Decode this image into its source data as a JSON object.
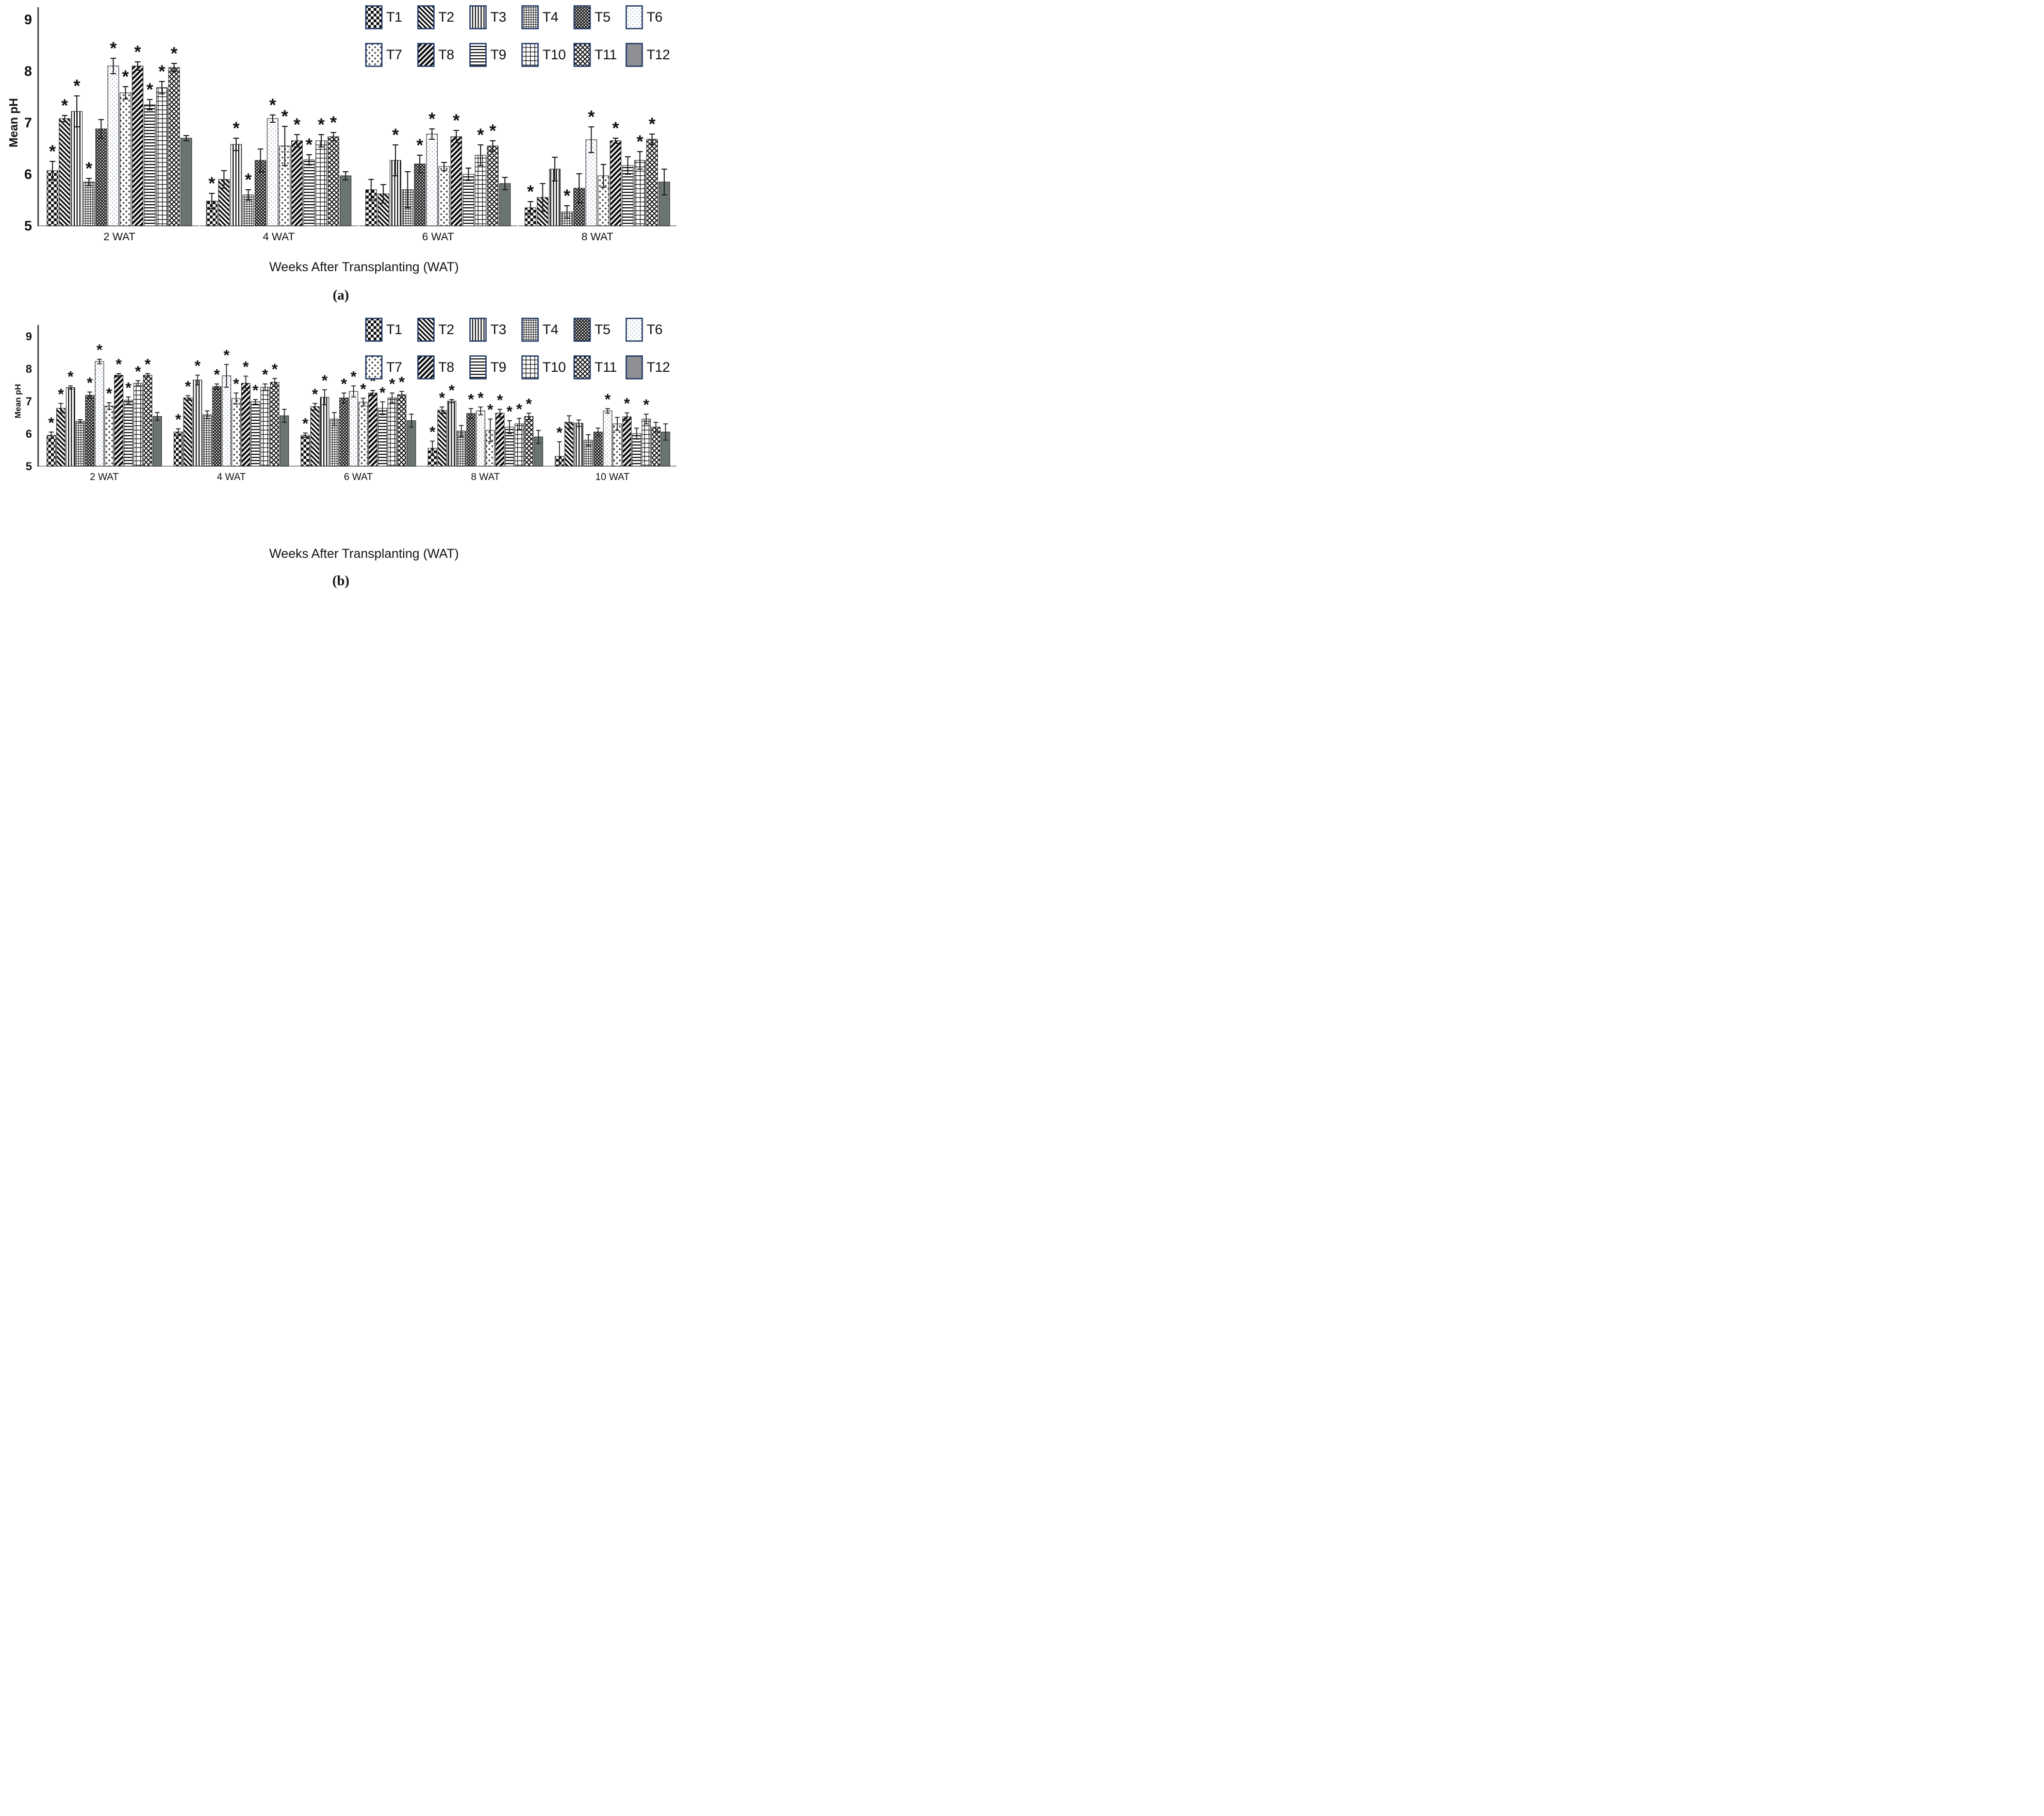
{
  "figure": {
    "panels": [
      {
        "id": "a",
        "panel_label": "(a)"
      },
      {
        "id": "b",
        "panel_label": "(b)"
      }
    ],
    "legend": {
      "items": [
        {
          "label": "T1",
          "pattern": "checker"
        },
        {
          "label": "T2",
          "pattern": "diag-down"
        },
        {
          "label": "T3",
          "pattern": "vlines"
        },
        {
          "label": "T4",
          "pattern": "grid-fine"
        },
        {
          "label": "T5",
          "pattern": "diamond-fine"
        },
        {
          "label": "T6",
          "pattern": "dots"
        },
        {
          "label": "T7",
          "pattern": "plus"
        },
        {
          "label": "T8",
          "pattern": "diag-up"
        },
        {
          "label": "T9",
          "pattern": "hlines"
        },
        {
          "label": "T10",
          "pattern": "grid"
        },
        {
          "label": "T11",
          "pattern": "diamond"
        },
        {
          "label": "T12",
          "pattern": "solid"
        }
      ]
    },
    "colors": {
      "bar_outline": "#2b2b2b",
      "axis": "#4a4a4a",
      "baseline": "#9a9a9a",
      "text": "#111111",
      "t12_bar": "#6b756f",
      "t12_legend": "#8e9094",
      "t6_dot": "#8fa2c2",
      "legend_border": "#1f3864"
    },
    "significance_marker": "*"
  },
  "chart_data": [
    {
      "type": "bar",
      "title": "(a)",
      "xlabel": "Weeks After Transplanting (WAT)",
      "ylabel": "Mean pH",
      "ylim": [
        5,
        9
      ],
      "y_ticks": [
        5,
        6,
        7,
        8,
        9
      ],
      "grid": false,
      "legend_position": "top-right",
      "categories": [
        "2 WAT",
        "4 WAT",
        "6 WAT",
        "8 WAT"
      ],
      "series": [
        {
          "name": "T1",
          "pattern": "checker",
          "values": [
            6.07,
            5.48,
            5.7,
            5.35
          ],
          "errors": [
            0.18,
            0.15,
            0.2,
            0.12
          ],
          "significant": [
            true,
            true,
            false,
            true
          ]
        },
        {
          "name": "T2",
          "pattern": "diag-down",
          "values": [
            7.08,
            5.9,
            5.62,
            5.55
          ],
          "errors": [
            0.06,
            0.17,
            0.18,
            0.27
          ],
          "significant": [
            true,
            false,
            false,
            false
          ]
        },
        {
          "name": "T3",
          "pattern": "vlines",
          "values": [
            7.22,
            6.58,
            6.27,
            6.1
          ],
          "errors": [
            0.3,
            0.12,
            0.3,
            0.23
          ],
          "significant": [
            true,
            true,
            true,
            false
          ]
        },
        {
          "name": "T4",
          "pattern": "grid-fine",
          "values": [
            5.85,
            5.6,
            5.7,
            5.27
          ],
          "errors": [
            0.07,
            0.1,
            0.35,
            0.12
          ],
          "significant": [
            true,
            true,
            false,
            true
          ]
        },
        {
          "name": "T5",
          "pattern": "diamond-fine",
          "values": [
            6.88,
            6.27,
            6.2,
            5.73
          ],
          "errors": [
            0.18,
            0.22,
            0.17,
            0.28
          ],
          "significant": [
            false,
            false,
            true,
            false
          ]
        },
        {
          "name": "T6",
          "pattern": "dots",
          "values": [
            8.1,
            7.08,
            6.78,
            6.67
          ],
          "errors": [
            0.15,
            0.07,
            0.1,
            0.25
          ],
          "significant": [
            true,
            true,
            true,
            true
          ]
        },
        {
          "name": "T7",
          "pattern": "plus",
          "values": [
            7.58,
            6.55,
            6.15,
            5.97
          ],
          "errors": [
            0.12,
            0.38,
            0.08,
            0.22
          ],
          "significant": [
            true,
            true,
            false,
            false
          ]
        },
        {
          "name": "T8",
          "pattern": "diag-up",
          "values": [
            8.1,
            6.65,
            6.73,
            6.65
          ],
          "errors": [
            0.08,
            0.12,
            0.12,
            0.05
          ],
          "significant": [
            true,
            true,
            true,
            true
          ]
        },
        {
          "name": "T9",
          "pattern": "hlines",
          "values": [
            7.35,
            6.28,
            6.0,
            6.17
          ],
          "errors": [
            0.1,
            0.1,
            0.12,
            0.17
          ],
          "significant": [
            true,
            true,
            false,
            false
          ]
        },
        {
          "name": "T10",
          "pattern": "grid",
          "values": [
            7.68,
            6.65,
            6.37,
            6.27
          ],
          "errors": [
            0.12,
            0.12,
            0.2,
            0.17
          ],
          "significant": [
            true,
            true,
            true,
            true
          ]
        },
        {
          "name": "T11",
          "pattern": "diamond",
          "values": [
            8.07,
            6.73,
            6.55,
            6.68
          ],
          "errors": [
            0.08,
            0.08,
            0.1,
            0.1
          ],
          "significant": [
            true,
            true,
            true,
            true
          ]
        },
        {
          "name": "T12",
          "pattern": "solid",
          "values": [
            6.7,
            5.97,
            5.82,
            5.85
          ],
          "errors": [
            0.05,
            0.08,
            0.12,
            0.25
          ],
          "significant": [
            false,
            false,
            false,
            false
          ]
        }
      ]
    },
    {
      "type": "bar",
      "title": "(b)",
      "xlabel": "Weeks After Transplanting (WAT)",
      "ylabel": "Mean pH",
      "ylim": [
        5,
        9
      ],
      "y_ticks": [
        5,
        6,
        7,
        8,
        9
      ],
      "grid": false,
      "legend_position": "top-right",
      "categories": [
        "2 WAT",
        "4 WAT",
        "6 WAT",
        "8 WAT",
        "10 WAT"
      ],
      "series": [
        {
          "name": "T1",
          "pattern": "checker",
          "values": [
            5.95,
            6.05,
            5.95,
            5.55,
            5.3
          ],
          "errors": [
            0.1,
            0.1,
            0.07,
            0.22,
            0.45
          ],
          "significant": [
            true,
            true,
            true,
            true,
            true
          ]
        },
        {
          "name": "T2",
          "pattern": "diag-down",
          "values": [
            6.78,
            7.1,
            6.83,
            6.72,
            6.35
          ],
          "errors": [
            0.15,
            0.07,
            0.1,
            0.1,
            0.2
          ],
          "significant": [
            true,
            true,
            true,
            true,
            false
          ]
        },
        {
          "name": "T3",
          "pattern": "vlines",
          "values": [
            7.42,
            7.65,
            7.12,
            7.0,
            6.32
          ],
          "errors": [
            0.05,
            0.15,
            0.23,
            0.05,
            0.1
          ],
          "significant": [
            true,
            true,
            true,
            true,
            false
          ]
        },
        {
          "name": "T4",
          "pattern": "grid-fine",
          "values": [
            6.38,
            6.58,
            6.45,
            6.08,
            5.8
          ],
          "errors": [
            0.05,
            0.12,
            0.2,
            0.17,
            0.17
          ],
          "significant": [
            false,
            false,
            false,
            false,
            false
          ]
        },
        {
          "name": "T5",
          "pattern": "diamond-fine",
          "values": [
            7.18,
            7.45,
            7.1,
            6.62,
            6.05
          ],
          "errors": [
            0.1,
            0.08,
            0.15,
            0.15,
            0.12
          ],
          "significant": [
            true,
            true,
            true,
            true,
            false
          ]
        },
        {
          "name": "T6",
          "pattern": "dots",
          "values": [
            8.22,
            7.78,
            7.3,
            6.7,
            6.7
          ],
          "errors": [
            0.07,
            0.35,
            0.17,
            0.12,
            0.07
          ],
          "significant": [
            true,
            true,
            true,
            true,
            true
          ]
        },
        {
          "name": "T7",
          "pattern": "plus",
          "values": [
            6.85,
            7.08,
            6.97,
            6.1,
            6.3
          ],
          "errors": [
            0.1,
            0.17,
            0.12,
            0.35,
            0.2
          ],
          "significant": [
            true,
            true,
            true,
            true,
            false
          ]
        },
        {
          "name": "T8",
          "pattern": "diag-up",
          "values": [
            7.8,
            7.55,
            7.25,
            6.63,
            6.52
          ],
          "errors": [
            0.05,
            0.22,
            0.08,
            0.12,
            0.12
          ],
          "significant": [
            true,
            true,
            true,
            true,
            true
          ]
        },
        {
          "name": "T9",
          "pattern": "hlines",
          "values": [
            7.03,
            6.98,
            6.78,
            6.2,
            6.0
          ],
          "errors": [
            0.1,
            0.07,
            0.2,
            0.2,
            0.17
          ],
          "significant": [
            true,
            true,
            true,
            true,
            false
          ]
        },
        {
          "name": "T10",
          "pattern": "grid",
          "values": [
            7.55,
            7.43,
            7.1,
            6.3,
            6.45
          ],
          "errors": [
            0.08,
            0.1,
            0.15,
            0.17,
            0.15
          ],
          "significant": [
            true,
            true,
            true,
            true,
            true
          ]
        },
        {
          "name": "T11",
          "pattern": "diamond",
          "values": [
            7.8,
            7.58,
            7.2,
            6.53,
            6.2
          ],
          "errors": [
            0.05,
            0.12,
            0.1,
            0.1,
            0.15
          ],
          "significant": [
            true,
            true,
            true,
            true,
            false
          ]
        },
        {
          "name": "T12",
          "pattern": "solid",
          "values": [
            6.53,
            6.55,
            6.4,
            5.9,
            6.05
          ],
          "errors": [
            0.12,
            0.2,
            0.2,
            0.2,
            0.25
          ],
          "significant": [
            false,
            false,
            false,
            false,
            false
          ]
        }
      ]
    }
  ]
}
